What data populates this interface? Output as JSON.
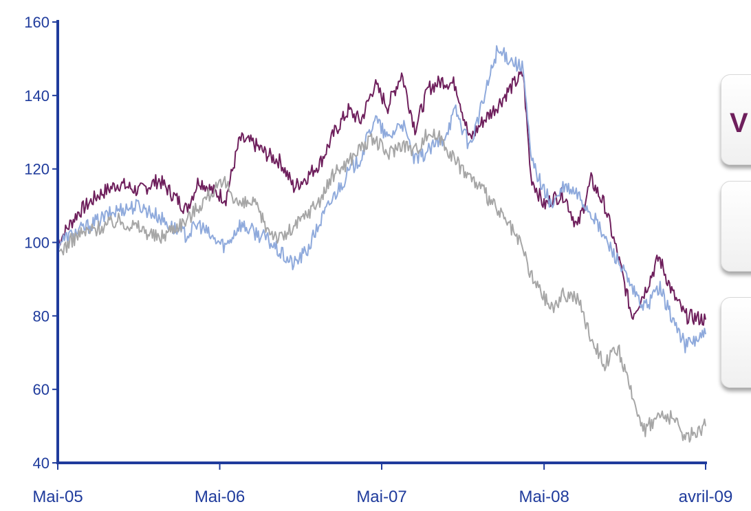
{
  "chart_data": {
    "type": "line",
    "ylim": [
      40,
      160
    ],
    "yticks": [
      40,
      60,
      80,
      100,
      120,
      140,
      160
    ],
    "xlim": [
      "2005-05-01",
      "2009-04-30"
    ],
    "xticks": [
      {
        "label": "Mai-05",
        "date": "2005-05-01"
      },
      {
        "label": "Mai-06",
        "date": "2006-05-01"
      },
      {
        "label": "Mai-07",
        "date": "2007-05-01"
      },
      {
        "label": "Mai-08",
        "date": "2008-05-01"
      },
      {
        "label": "avril-09",
        "date": "2009-04-30"
      }
    ],
    "series": [
      {
        "color": "#6e1f5c",
        "points": [
          [
            "2005-05-01",
            100
          ],
          [
            "2005-06-15",
            108
          ],
          [
            "2005-08-01",
            113
          ],
          [
            "2005-09-15",
            116
          ],
          [
            "2005-11-01",
            114
          ],
          [
            "2005-12-15",
            117
          ],
          [
            "2006-01-15",
            113
          ],
          [
            "2006-02-15",
            109
          ],
          [
            "2006-03-15",
            117
          ],
          [
            "2006-04-15",
            114
          ],
          [
            "2006-05-15",
            112
          ],
          [
            "2006-06-15",
            128
          ],
          [
            "2006-07-15",
            127
          ],
          [
            "2006-08-15",
            124
          ],
          [
            "2006-09-15",
            122
          ],
          [
            "2006-10-15",
            115
          ],
          [
            "2006-11-15",
            118
          ],
          [
            "2006-12-15",
            122
          ],
          [
            "2007-01-15",
            130
          ],
          [
            "2007-02-15",
            136
          ],
          [
            "2007-03-15",
            133
          ],
          [
            "2007-04-15",
            143
          ],
          [
            "2007-05-15",
            137
          ],
          [
            "2007-06-15",
            146
          ],
          [
            "2007-07-15",
            131
          ],
          [
            "2007-08-15",
            142
          ],
          [
            "2007-09-15",
            144
          ],
          [
            "2007-10-15",
            143
          ],
          [
            "2007-11-15",
            128
          ],
          [
            "2007-12-15",
            133
          ],
          [
            "2008-01-15",
            137
          ],
          [
            "2008-02-15",
            142
          ],
          [
            "2008-03-15",
            146
          ],
          [
            "2008-04-01",
            118
          ],
          [
            "2008-05-01",
            110
          ],
          [
            "2008-05-20",
            112
          ],
          [
            "2008-06-15",
            113
          ],
          [
            "2008-07-15",
            104
          ],
          [
            "2008-08-15",
            117
          ],
          [
            "2008-09-15",
            110
          ],
          [
            "2008-10-15",
            96
          ],
          [
            "2008-11-15",
            80
          ],
          [
            "2008-12-15",
            87
          ],
          [
            "2009-01-15",
            96
          ],
          [
            "2009-02-15",
            86
          ],
          [
            "2009-03-15",
            80
          ],
          [
            "2009-04-30",
            79
          ]
        ]
      },
      {
        "color": "#8faadc",
        "points": [
          [
            "2005-05-01",
            100
          ],
          [
            "2005-06-15",
            103
          ],
          [
            "2005-08-01",
            106
          ],
          [
            "2005-09-15",
            109
          ],
          [
            "2005-11-01",
            110
          ],
          [
            "2005-12-15",
            107
          ],
          [
            "2006-01-15",
            104
          ],
          [
            "2006-02-15",
            102
          ],
          [
            "2006-03-15",
            105
          ],
          [
            "2006-04-15",
            101
          ],
          [
            "2006-05-15",
            99
          ],
          [
            "2006-06-15",
            105
          ],
          [
            "2006-07-15",
            103
          ],
          [
            "2006-08-15",
            101
          ],
          [
            "2006-09-15",
            97
          ],
          [
            "2006-10-15",
            94
          ],
          [
            "2006-11-15",
            98
          ],
          [
            "2006-12-15",
            106
          ],
          [
            "2007-01-15",
            113
          ],
          [
            "2007-02-15",
            119
          ],
          [
            "2007-03-15",
            123
          ],
          [
            "2007-04-15",
            134
          ],
          [
            "2007-05-15",
            128
          ],
          [
            "2007-06-15",
            133
          ],
          [
            "2007-07-15",
            122
          ],
          [
            "2007-08-15",
            125
          ],
          [
            "2007-09-15",
            128
          ],
          [
            "2007-10-15",
            136
          ],
          [
            "2007-11-15",
            126
          ],
          [
            "2007-12-15",
            138
          ],
          [
            "2008-01-15",
            152
          ],
          [
            "2008-02-15",
            150
          ],
          [
            "2008-03-15",
            147
          ],
          [
            "2008-04-01",
            123
          ],
          [
            "2008-05-01",
            114
          ],
          [
            "2008-05-20",
            110
          ],
          [
            "2008-06-15",
            115
          ],
          [
            "2008-07-15",
            113
          ],
          [
            "2008-08-15",
            108
          ],
          [
            "2008-09-15",
            101
          ],
          [
            "2008-10-15",
            95
          ],
          [
            "2008-11-15",
            87
          ],
          [
            "2008-12-15",
            82
          ],
          [
            "2009-01-15",
            88
          ],
          [
            "2009-02-15",
            79
          ],
          [
            "2009-03-15",
            72
          ],
          [
            "2009-04-30",
            75
          ]
        ]
      },
      {
        "color": "#a6a6a6",
        "points": [
          [
            "2005-05-01",
            97
          ],
          [
            "2005-06-15",
            102
          ],
          [
            "2005-08-01",
            104
          ],
          [
            "2005-09-15",
            106
          ],
          [
            "2005-11-01",
            104
          ],
          [
            "2005-12-15",
            101
          ],
          [
            "2006-01-15",
            104
          ],
          [
            "2006-02-15",
            106
          ],
          [
            "2006-03-15",
            110
          ],
          [
            "2006-04-15",
            114
          ],
          [
            "2006-05-15",
            116
          ],
          [
            "2006-06-15",
            110
          ],
          [
            "2006-07-15",
            111
          ],
          [
            "2006-08-15",
            104
          ],
          [
            "2006-09-15",
            101
          ],
          [
            "2006-10-15",
            104
          ],
          [
            "2006-11-15",
            108
          ],
          [
            "2006-12-15",
            112
          ],
          [
            "2007-01-15",
            119
          ],
          [
            "2007-02-15",
            122
          ],
          [
            "2007-03-15",
            126
          ],
          [
            "2007-04-15",
            128
          ],
          [
            "2007-05-15",
            124
          ],
          [
            "2007-06-15",
            127
          ],
          [
            "2007-07-15",
            125
          ],
          [
            "2007-08-15",
            130
          ],
          [
            "2007-09-15",
            128
          ],
          [
            "2007-10-15",
            122
          ],
          [
            "2007-11-15",
            118
          ],
          [
            "2007-12-15",
            114
          ],
          [
            "2008-01-15",
            109
          ],
          [
            "2008-02-15",
            104
          ],
          [
            "2008-03-15",
            98
          ],
          [
            "2008-04-01",
            91
          ],
          [
            "2008-05-01",
            85
          ],
          [
            "2008-05-20",
            82
          ],
          [
            "2008-06-15",
            86
          ],
          [
            "2008-07-15",
            85
          ],
          [
            "2008-08-15",
            74
          ],
          [
            "2008-09-15",
            67
          ],
          [
            "2008-10-15",
            71
          ],
          [
            "2008-11-15",
            58
          ],
          [
            "2008-12-15",
            49
          ],
          [
            "2009-01-15",
            53
          ],
          [
            "2009-02-15",
            52
          ],
          [
            "2009-03-15",
            47
          ],
          [
            "2009-04-30",
            50
          ]
        ]
      }
    ]
  },
  "legend": {
    "mark": "V",
    "mark_color": "#6e1f5c"
  },
  "colors": {
    "axis": "#1f3b9c",
    "label": "#1f3b9c"
  }
}
